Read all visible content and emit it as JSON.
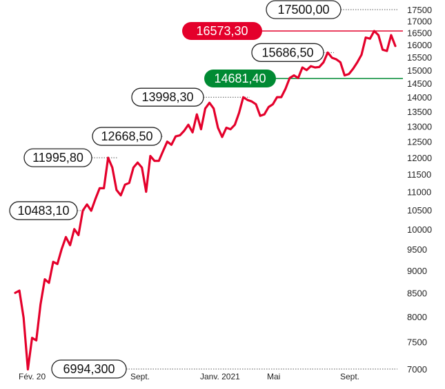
{
  "chart_data": {
    "type": "line",
    "ylim": [
      7000,
      17500
    ],
    "y_scale": "log",
    "y_ticks": [
      "17500",
      "17000",
      "16500",
      "16000",
      "15500",
      "15000",
      "14500",
      "14000",
      "13500",
      "13000",
      "12500",
      "12000",
      "11500",
      "11000",
      "10500",
      "10000",
      "9500",
      "9000",
      "8500",
      "8000",
      "7500",
      "7000"
    ],
    "x_tick_labels": [
      "Fév. 20",
      "Sept.",
      "Janv. 2021",
      "Mai",
      "Sept."
    ],
    "grid": false,
    "series": [
      {
        "color": "#e4002b",
        "points": [
          [
            0,
            8500
          ],
          [
            1,
            8550
          ],
          [
            2,
            7980
          ],
          [
            3,
            6994.3
          ],
          [
            4,
            7580
          ],
          [
            5,
            7530
          ],
          [
            6,
            8250
          ],
          [
            7,
            8800
          ],
          [
            8,
            8720
          ],
          [
            9,
            9200
          ],
          [
            10,
            9150
          ],
          [
            11,
            9500
          ],
          [
            12,
            9800
          ],
          [
            13,
            9600
          ],
          [
            14,
            10000
          ],
          [
            15,
            9850
          ],
          [
            16,
            10483.1
          ],
          [
            17,
            10650
          ],
          [
            18,
            10480
          ],
          [
            19,
            10800
          ],
          [
            20,
            11100
          ],
          [
            21,
            11100
          ],
          [
            22,
            11995.8
          ],
          [
            23,
            11700
          ],
          [
            24,
            11050
          ],
          [
            25,
            10900
          ],
          [
            26,
            11200
          ],
          [
            27,
            11250
          ],
          [
            28,
            11700
          ],
          [
            29,
            11850
          ],
          [
            30,
            11700
          ],
          [
            31,
            11000
          ],
          [
            32,
            12050
          ],
          [
            33,
            11900
          ],
          [
            34,
            11900
          ],
          [
            35,
            12200
          ],
          [
            36,
            12500
          ],
          [
            37,
            12400
          ],
          [
            38,
            12668.5
          ],
          [
            39,
            12700
          ],
          [
            40,
            12850
          ],
          [
            41,
            13050
          ],
          [
            42,
            12800
          ],
          [
            43,
            13400
          ],
          [
            44,
            12900
          ],
          [
            45,
            13600
          ],
          [
            46,
            13800
          ],
          [
            47,
            13600
          ],
          [
            48,
            12950
          ],
          [
            49,
            12650
          ],
          [
            50,
            12950
          ],
          [
            51,
            12900
          ],
          [
            52,
            13050
          ],
          [
            53,
            13450
          ],
          [
            54,
            13998.3
          ],
          [
            55,
            13900
          ],
          [
            56,
            13850
          ],
          [
            57,
            13750
          ],
          [
            58,
            13350
          ],
          [
            59,
            13400
          ],
          [
            60,
            13650
          ],
          [
            61,
            13750
          ],
          [
            62,
            14000
          ],
          [
            63,
            14000
          ],
          [
            64,
            14300
          ],
          [
            65,
            14700
          ],
          [
            66,
            14800
          ],
          [
            67,
            14700
          ],
          [
            68,
            15100
          ],
          [
            69,
            15000
          ],
          [
            70,
            15150
          ],
          [
            71,
            15100
          ],
          [
            72,
            15120
          ],
          [
            73,
            15300
          ],
          [
            74,
            15686.5
          ],
          [
            75,
            15480
          ],
          [
            76,
            15420
          ],
          [
            77,
            15300
          ],
          [
            78,
            14800
          ],
          [
            79,
            14850
          ],
          [
            80,
            15050
          ],
          [
            81,
            15300
          ],
          [
            82,
            15600
          ],
          [
            83,
            16300
          ],
          [
            84,
            16250
          ],
          [
            85,
            16573.3
          ],
          [
            86,
            16400
          ],
          [
            87,
            15800
          ],
          [
            88,
            15750
          ],
          [
            89,
            16400
          ],
          [
            90,
            15950
          ]
        ]
      }
    ],
    "annotations": [
      {
        "label": "6994,300",
        "value": 6994.3
      },
      {
        "label": "10483,10",
        "value": 10483.1
      },
      {
        "label": "11995,80",
        "value": 11995.8
      },
      {
        "label": "12668,50",
        "value": 12668.5
      },
      {
        "label": "13998,30",
        "value": 13998.3
      },
      {
        "label": "15686,50",
        "value": 15686.5
      },
      {
        "label": "17500,00",
        "value": 17500
      }
    ],
    "reference_lines": [
      {
        "label": "16573,30",
        "value": 16573.3,
        "color": "#e4002b"
      },
      {
        "label": "14681,40",
        "value": 14681.4,
        "color": "#008a33"
      }
    ]
  }
}
